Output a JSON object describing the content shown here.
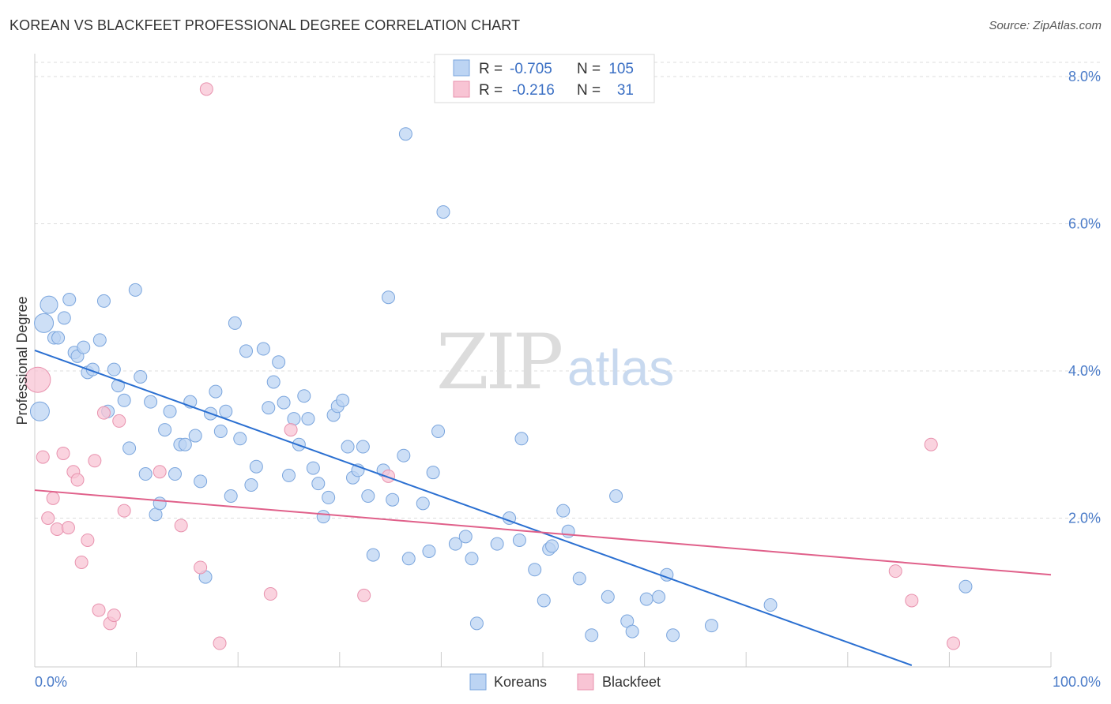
{
  "title": "KOREAN VS BLACKFEET PROFESSIONAL DEGREE CORRELATION CHART",
  "source": "Source: ZipAtlas.com",
  "watermark": {
    "zip": "ZIP",
    "atlas": "atlas"
  },
  "colors": {
    "korean_fill": "#bcd4f3",
    "korean_stroke": "#7aa5dd",
    "korean_line": "#2a6fd1",
    "blackfeet_fill": "#f8c4d4",
    "blackfeet_stroke": "#e892ae",
    "blackfeet_line": "#e0608a",
    "tick": "#4a7bc8",
    "grid": "#dddddd"
  },
  "legend": {
    "row1": {
      "r_label": "R =",
      "r_value": "-0.705",
      "n_label": "N =",
      "n_value": "105"
    },
    "row2": {
      "r_label": "R =",
      "r_value": "-0.216",
      "n_label": "N =",
      "n_value": "31"
    }
  },
  "chart_data": {
    "type": "scatter",
    "title": "KOREAN VS BLACKFEET PROFESSIONAL DEGREE CORRELATION CHART",
    "xlabel": "",
    "ylabel": "Professional Degree",
    "xlim": [
      0,
      100
    ],
    "ylim": [
      0,
      8.2
    ],
    "x_tick_labels": [
      "0.0%",
      "100.0%"
    ],
    "y_ticks": [
      {
        "value": 2,
        "label": "2.0%"
      },
      {
        "value": 4,
        "label": "4.0%"
      },
      {
        "value": 6,
        "label": "6.0%"
      },
      {
        "value": 8,
        "label": "8.0%"
      }
    ],
    "grid": true,
    "legend_position": "top-center",
    "series": [
      {
        "name": "Koreans",
        "r": -0.705,
        "n": 105,
        "trend": {
          "x": [
            0,
            86.3
          ],
          "y": [
            4.28,
            0.0
          ]
        },
        "points": [
          {
            "x": 0.5,
            "y": 3.45,
            "s": 12
          },
          {
            "x": 0.9,
            "y": 4.65,
            "s": 12
          },
          {
            "x": 1.4,
            "y": 4.9,
            "s": 11
          },
          {
            "x": 1.9,
            "y": 4.45
          },
          {
            "x": 2.3,
            "y": 4.45
          },
          {
            "x": 2.9,
            "y": 4.72
          },
          {
            "x": 3.4,
            "y": 4.97
          },
          {
            "x": 3.9,
            "y": 4.25
          },
          {
            "x": 4.2,
            "y": 4.2
          },
          {
            "x": 4.8,
            "y": 4.32
          },
          {
            "x": 5.2,
            "y": 3.98
          },
          {
            "x": 5.7,
            "y": 4.02
          },
          {
            "x": 6.4,
            "y": 4.42
          },
          {
            "x": 6.8,
            "y": 4.95
          },
          {
            "x": 7.2,
            "y": 3.45
          },
          {
            "x": 7.8,
            "y": 4.02
          },
          {
            "x": 8.2,
            "y": 3.8
          },
          {
            "x": 8.8,
            "y": 3.6
          },
          {
            "x": 9.3,
            "y": 2.95
          },
          {
            "x": 9.9,
            "y": 5.1
          },
          {
            "x": 10.4,
            "y": 3.92
          },
          {
            "x": 10.9,
            "y": 2.6
          },
          {
            "x": 11.4,
            "y": 3.58
          },
          {
            "x": 11.9,
            "y": 2.05
          },
          {
            "x": 12.3,
            "y": 2.2
          },
          {
            "x": 12.8,
            "y": 3.2
          },
          {
            "x": 13.3,
            "y": 3.45
          },
          {
            "x": 13.8,
            "y": 2.6
          },
          {
            "x": 14.3,
            "y": 3.0
          },
          {
            "x": 14.8,
            "y": 3.0
          },
          {
            "x": 15.3,
            "y": 3.58
          },
          {
            "x": 15.8,
            "y": 3.12
          },
          {
            "x": 16.3,
            "y": 2.5
          },
          {
            "x": 16.8,
            "y": 1.2
          },
          {
            "x": 17.3,
            "y": 3.42
          },
          {
            "x": 17.8,
            "y": 3.72
          },
          {
            "x": 18.3,
            "y": 3.18
          },
          {
            "x": 18.8,
            "y": 3.45
          },
          {
            "x": 19.3,
            "y": 2.3
          },
          {
            "x": 19.7,
            "y": 4.65
          },
          {
            "x": 20.2,
            "y": 3.08
          },
          {
            "x": 20.8,
            "y": 4.27
          },
          {
            "x": 21.3,
            "y": 2.45
          },
          {
            "x": 21.8,
            "y": 2.7
          },
          {
            "x": 22.5,
            "y": 4.3
          },
          {
            "x": 23.0,
            "y": 3.5
          },
          {
            "x": 23.5,
            "y": 3.85
          },
          {
            "x": 24.0,
            "y": 4.12
          },
          {
            "x": 24.5,
            "y": 3.57
          },
          {
            "x": 25.0,
            "y": 2.58
          },
          {
            "x": 25.5,
            "y": 3.35
          },
          {
            "x": 26.0,
            "y": 3.0
          },
          {
            "x": 26.5,
            "y": 3.66
          },
          {
            "x": 26.9,
            "y": 3.35
          },
          {
            "x": 27.4,
            "y": 2.68
          },
          {
            "x": 27.9,
            "y": 2.47
          },
          {
            "x": 28.4,
            "y": 2.02
          },
          {
            "x": 28.9,
            "y": 2.28
          },
          {
            "x": 29.4,
            "y": 3.4
          },
          {
            "x": 29.8,
            "y": 3.52
          },
          {
            "x": 30.3,
            "y": 3.6
          },
          {
            "x": 30.8,
            "y": 2.97
          },
          {
            "x": 31.3,
            "y": 2.55
          },
          {
            "x": 31.8,
            "y": 2.65
          },
          {
            "x": 32.3,
            "y": 2.97
          },
          {
            "x": 32.8,
            "y": 2.3
          },
          {
            "x": 33.3,
            "y": 1.5
          },
          {
            "x": 34.3,
            "y": 2.65
          },
          {
            "x": 34.8,
            "y": 5.0
          },
          {
            "x": 35.2,
            "y": 2.25
          },
          {
            "x": 36.3,
            "y": 2.85
          },
          {
            "x": 36.8,
            "y": 1.45
          },
          {
            "x": 38.2,
            "y": 2.2
          },
          {
            "x": 38.8,
            "y": 1.55
          },
          {
            "x": 39.2,
            "y": 2.62
          },
          {
            "x": 36.5,
            "y": 7.22
          },
          {
            "x": 39.7,
            "y": 3.18
          },
          {
            "x": 40.2,
            "y": 6.16
          },
          {
            "x": 41.4,
            "y": 1.65
          },
          {
            "x": 42.4,
            "y": 1.75
          },
          {
            "x": 43.0,
            "y": 1.45
          },
          {
            "x": 43.5,
            "y": 0.57
          },
          {
            "x": 45.5,
            "y": 1.65
          },
          {
            "x": 46.7,
            "y": 2.0
          },
          {
            "x": 47.7,
            "y": 1.7
          },
          {
            "x": 47.9,
            "y": 3.08
          },
          {
            "x": 49.2,
            "y": 1.3
          },
          {
            "x": 50.1,
            "y": 0.88
          },
          {
            "x": 50.6,
            "y": 1.58
          },
          {
            "x": 50.9,
            "y": 1.62
          },
          {
            "x": 52.0,
            "y": 2.1
          },
          {
            "x": 52.5,
            "y": 1.82
          },
          {
            "x": 53.6,
            "y": 1.18
          },
          {
            "x": 54.8,
            "y": 0.41
          },
          {
            "x": 56.4,
            "y": 0.93
          },
          {
            "x": 57.2,
            "y": 2.3
          },
          {
            "x": 58.3,
            "y": 0.6
          },
          {
            "x": 58.8,
            "y": 0.46
          },
          {
            "x": 60.2,
            "y": 0.9
          },
          {
            "x": 61.4,
            "y": 0.93
          },
          {
            "x": 62.2,
            "y": 1.23
          },
          {
            "x": 62.8,
            "y": 0.41
          },
          {
            "x": 66.6,
            "y": 0.54
          },
          {
            "x": 72.4,
            "y": 0.82
          },
          {
            "x": 91.6,
            "y": 1.07
          }
        ]
      },
      {
        "name": "Blackfeet",
        "r": -0.216,
        "n": 31,
        "trend": {
          "x": [
            0,
            100
          ],
          "y": [
            2.38,
            1.23
          ]
        },
        "points": [
          {
            "x": 0.3,
            "y": 3.88,
            "s": 16
          },
          {
            "x": 0.8,
            "y": 2.83
          },
          {
            "x": 1.3,
            "y": 2.0
          },
          {
            "x": 1.8,
            "y": 2.27
          },
          {
            "x": 2.2,
            "y": 1.85
          },
          {
            "x": 2.8,
            "y": 2.88
          },
          {
            "x": 3.3,
            "y": 1.87
          },
          {
            "x": 3.8,
            "y": 2.63
          },
          {
            "x": 4.2,
            "y": 2.52
          },
          {
            "x": 4.6,
            "y": 1.4
          },
          {
            "x": 5.2,
            "y": 1.7
          },
          {
            "x": 5.9,
            "y": 2.78
          },
          {
            "x": 6.3,
            "y": 0.75
          },
          {
            "x": 6.8,
            "y": 3.43
          },
          {
            "x": 7.4,
            "y": 0.57
          },
          {
            "x": 7.8,
            "y": 0.68
          },
          {
            "x": 8.3,
            "y": 3.32
          },
          {
            "x": 8.8,
            "y": 2.1
          },
          {
            "x": 12.3,
            "y": 2.63
          },
          {
            "x": 14.4,
            "y": 1.9
          },
          {
            "x": 16.3,
            "y": 1.33
          },
          {
            "x": 16.9,
            "y": 7.83
          },
          {
            "x": 18.2,
            "y": 0.3
          },
          {
            "x": 23.2,
            "y": 0.97
          },
          {
            "x": 25.2,
            "y": 3.2
          },
          {
            "x": 32.4,
            "y": 0.95
          },
          {
            "x": 34.8,
            "y": 2.57
          },
          {
            "x": 84.7,
            "y": 1.28
          },
          {
            "x": 86.3,
            "y": 0.88
          },
          {
            "x": 88.2,
            "y": 3.0
          },
          {
            "x": 90.4,
            "y": 0.3
          }
        ]
      }
    ]
  }
}
